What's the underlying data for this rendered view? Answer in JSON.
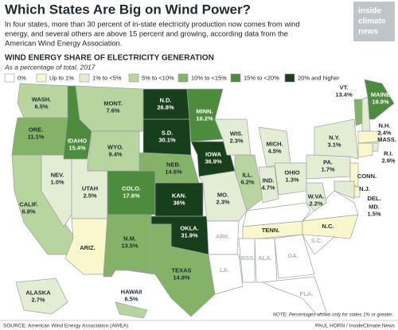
{
  "header": {
    "title": "Which States Are Big on Wind Power?",
    "intro": [
      "In four states, more than 30 percent of in-state electricity production now comes from wind",
      "energy, and several others are above 15 percent and growing, according data from the",
      "American Wind Energy Association."
    ],
    "logo": [
      "inside",
      "climate",
      "news"
    ]
  },
  "map": {
    "title": "WIND ENERGY SHARE OF ELECTRICITY GENERATION",
    "subtitle": "As a percentage of total, 2017",
    "legend": [
      {
        "label": "0%",
        "color": "#ffffff"
      },
      {
        "label": "Up to 1%",
        "color": "#fbf7cc"
      },
      {
        "label": "1% to <5%",
        "color": "#e3edd3"
      },
      {
        "label": "5% to <10%",
        "color": "#b9d59f"
      },
      {
        "label": "10% to <15%",
        "color": "#84b367"
      },
      {
        "label": "15% to <20%",
        "color": "#4c8c3c"
      },
      {
        "label": "20% and higher",
        "color": "#173f1b"
      }
    ],
    "states": [
      {
        "name": "WASH.",
        "value": "6.5%",
        "category": 3
      },
      {
        "name": "ORE.",
        "value": "11.1%",
        "category": 4
      },
      {
        "name": "CALIF.",
        "value": "6.8%",
        "category": 3
      },
      {
        "name": "NEV.",
        "value": "1.0%",
        "category": 2
      },
      {
        "name": "IDAHO",
        "value": "15.4%",
        "category": 5
      },
      {
        "name": "MONT.",
        "value": "7.6%",
        "category": 3
      },
      {
        "name": "WYO.",
        "value": "9.4%",
        "category": 3
      },
      {
        "name": "UTAH",
        "value": "2.5%",
        "category": 2
      },
      {
        "name": "ARIZ.",
        "category": 1
      },
      {
        "name": "COLO.",
        "value": "17.6%",
        "category": 5
      },
      {
        "name": "N.M.",
        "value": "13.5%",
        "category": 4
      },
      {
        "name": "N.D.",
        "value": "26.8%",
        "category": 6
      },
      {
        "name": "S.D.",
        "value": "30.1%",
        "category": 6
      },
      {
        "name": "NEB.",
        "value": "14.6%",
        "category": 4
      },
      {
        "name": "KAN.",
        "value": "36%",
        "category": 6
      },
      {
        "name": "OKLA.",
        "value": "31.9%",
        "category": 6
      },
      {
        "name": "TEXAS",
        "value": "14.8%",
        "category": 4
      },
      {
        "name": "MINN.",
        "value": "18.2%",
        "category": 5
      },
      {
        "name": "IOWA",
        "value": "36.9%",
        "category": 6
      },
      {
        "name": "MO.",
        "value": "2.3%",
        "category": 2
      },
      {
        "name": "WIS.",
        "value": "2.3%",
        "category": 2
      },
      {
        "name": "ILL.",
        "value": "6.2%",
        "category": 3
      },
      {
        "name": "MICH.",
        "value": "4.5%",
        "category": 2
      },
      {
        "name": "IND.",
        "value": "4.7%",
        "category": 2
      },
      {
        "name": "OHIO",
        "value": "1.3%",
        "category": 2
      },
      {
        "name": "PA.",
        "value": "1.7%",
        "category": 2
      },
      {
        "name": "N.Y.",
        "value": "3.1%",
        "category": 2
      },
      {
        "name": "VT.",
        "value": "13.4%",
        "category": 4
      },
      {
        "name": "MAINE",
        "value": "19.9%",
        "category": 5
      },
      {
        "name": "N.H.",
        "value": "2.4%",
        "category": 2
      },
      {
        "name": "MASS.",
        "category": 1
      },
      {
        "name": "R.I.",
        "value": "2.9%",
        "category": 2
      },
      {
        "name": "CONN.",
        "category": 1
      },
      {
        "name": "N.J.",
        "category": 1
      },
      {
        "name": "DEL.",
        "category": 1
      },
      {
        "name": "MD.",
        "value": "1.5%",
        "category": 2
      },
      {
        "name": "W.VA.",
        "value": "2.2%",
        "category": 2
      },
      {
        "name": "TENN.",
        "category": 1
      },
      {
        "name": "N.C.",
        "category": 1
      },
      {
        "name": "ALASKA",
        "value": "2.7%",
        "category": 2
      },
      {
        "name": "HAWAII",
        "value": "6.5%",
        "category": 3
      },
      {
        "name": "ARK.",
        "category": 0
      },
      {
        "name": "LA.",
        "category": 0
      },
      {
        "name": "MISS.",
        "category": 0
      },
      {
        "name": "ALA.",
        "category": 0
      },
      {
        "name": "GA.",
        "category": 0
      },
      {
        "name": "S.C.",
        "category": 0
      },
      {
        "name": "FLA.",
        "category": 0
      }
    ],
    "note": "NOTE: Percentages shown only for states 1% or greater."
  },
  "footer": {
    "source": "SOURCE: American Wind Energy Association (AWEA)",
    "credit": "PAUL HORN / InsideClimate News"
  }
}
